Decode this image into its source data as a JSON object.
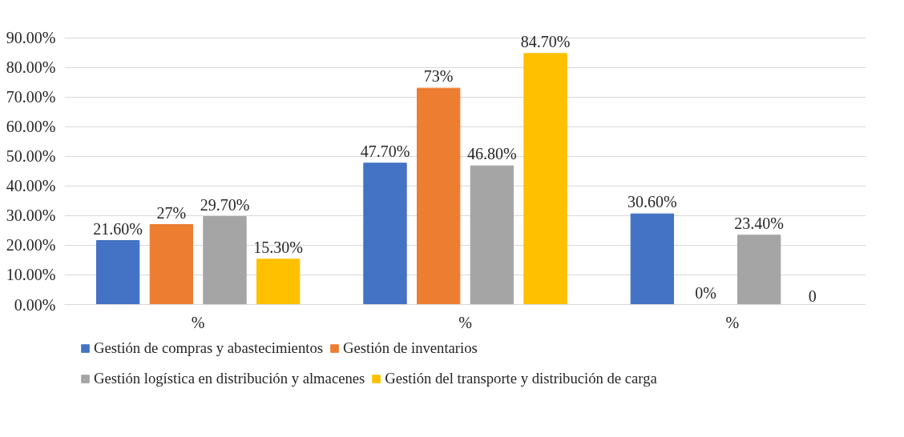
{
  "chart_data": {
    "type": "bar",
    "categories": [
      "%",
      "%",
      "%"
    ],
    "series": [
      {
        "name": "Gestión de compras y abastecimientos",
        "color": "#4472c4",
        "values": [
          21.6,
          47.7,
          30.6
        ],
        "value_labels": [
          "21.60%",
          "47.70%",
          "30.60%"
        ]
      },
      {
        "name": "Gestión de inventarios",
        "color": "#ed7d31",
        "values": [
          27,
          73,
          0
        ],
        "value_labels": [
          "27%",
          "73%",
          "0%"
        ]
      },
      {
        "name": "Gestión logística en distribución y almacenes",
        "color": "#a5a5a5",
        "values": [
          29.7,
          46.8,
          23.4
        ],
        "value_labels": [
          "29.70%",
          "46.80%",
          "23.40%"
        ]
      },
      {
        "name": "Gestión del transporte y distribución de carga",
        "color": "#ffc000",
        "values": [
          15.3,
          84.7,
          0
        ],
        "value_labels": [
          "15.30%",
          "84.70%",
          "0"
        ]
      }
    ],
    "ylim": [
      0,
      90
    ],
    "yticks": [
      {
        "value": 0,
        "label": "0.00%"
      },
      {
        "value": 10,
        "label": "10.00%"
      },
      {
        "value": 20,
        "label": "20.00%"
      },
      {
        "value": 30,
        "label": "30.00%"
      },
      {
        "value": 40,
        "label": "40.00%"
      },
      {
        "value": 50,
        "label": "50.00%"
      },
      {
        "value": 60,
        "label": "60.00%"
      },
      {
        "value": 70,
        "label": "70.00%"
      },
      {
        "value": 80,
        "label": "80.00%"
      },
      {
        "value": 90,
        "label": "90.00%"
      }
    ],
    "grid": "y",
    "legend": "bottom"
  }
}
